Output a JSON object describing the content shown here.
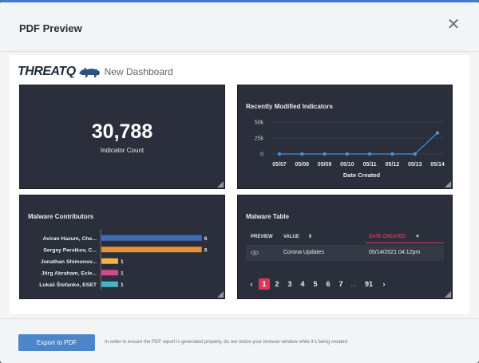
{
  "modal": {
    "title": "PDF Preview",
    "close_glyph": "✕"
  },
  "brand": {
    "logo_text": "THREATQ",
    "dashboard_name": "New Dashboard"
  },
  "indicator_card": {
    "value": "30,788",
    "label": "Indicator Count"
  },
  "recent_card": {
    "title": "Recently Modified Indicators",
    "line_color": "#4a90d9",
    "chart_data": {
      "type": "line",
      "categories": [
        "05/07",
        "05/08",
        "05/09",
        "05/10",
        "05/11",
        "05/12",
        "05/13",
        "05/14"
      ],
      "values": [
        0,
        0,
        0,
        0,
        0,
        0,
        0,
        33000
      ],
      "xlabel": "Date Created",
      "ylabel": "",
      "yticks": [
        "0",
        "25k",
        "50k"
      ],
      "ylim": [
        0,
        50000
      ],
      "grid": true
    }
  },
  "malware_card": {
    "title": "Malware Contributors",
    "chart_data": {
      "type": "bar",
      "orientation": "horizontal",
      "categories": [
        "Aviran Hazum, Che...",
        "Sergey Persikov, C...",
        "Jonathan Shimonov...",
        "Jörg Abraham, Ecle...",
        "Lukáš Štefanko, ESET"
      ],
      "values": [
        6,
        6,
        1,
        1,
        1
      ],
      "value_labels": [
        "6",
        "6",
        "1",
        "1",
        "1"
      ],
      "colors": [
        "#3f6fb5",
        "#e8913a",
        "#f2b340",
        "#d9478a",
        "#48b4c9"
      ],
      "xlim": [
        0,
        6.3
      ]
    }
  },
  "table_card": {
    "title": "Malware Table",
    "columns": {
      "preview": "PREVIEW",
      "value": "VALUE",
      "date": "DATE CREATED"
    },
    "sort_icon": "⇕",
    "sort_desc_icon": "▼",
    "accent": "#e0355b",
    "rows": [
      {
        "value": "Corona Updates",
        "date": "05/14/2021 04:12pm"
      }
    ],
    "pager": {
      "prev": "‹",
      "pages": [
        "1",
        "2",
        "3",
        "4",
        "5",
        "6",
        "7"
      ],
      "ellipsis": "...",
      "last": "91",
      "next": "›"
    }
  },
  "footer": {
    "export_label": "Export to PDF",
    "note": "In order to ensure the PDF report is generated properly, do not resize your browser window while it's being created"
  }
}
